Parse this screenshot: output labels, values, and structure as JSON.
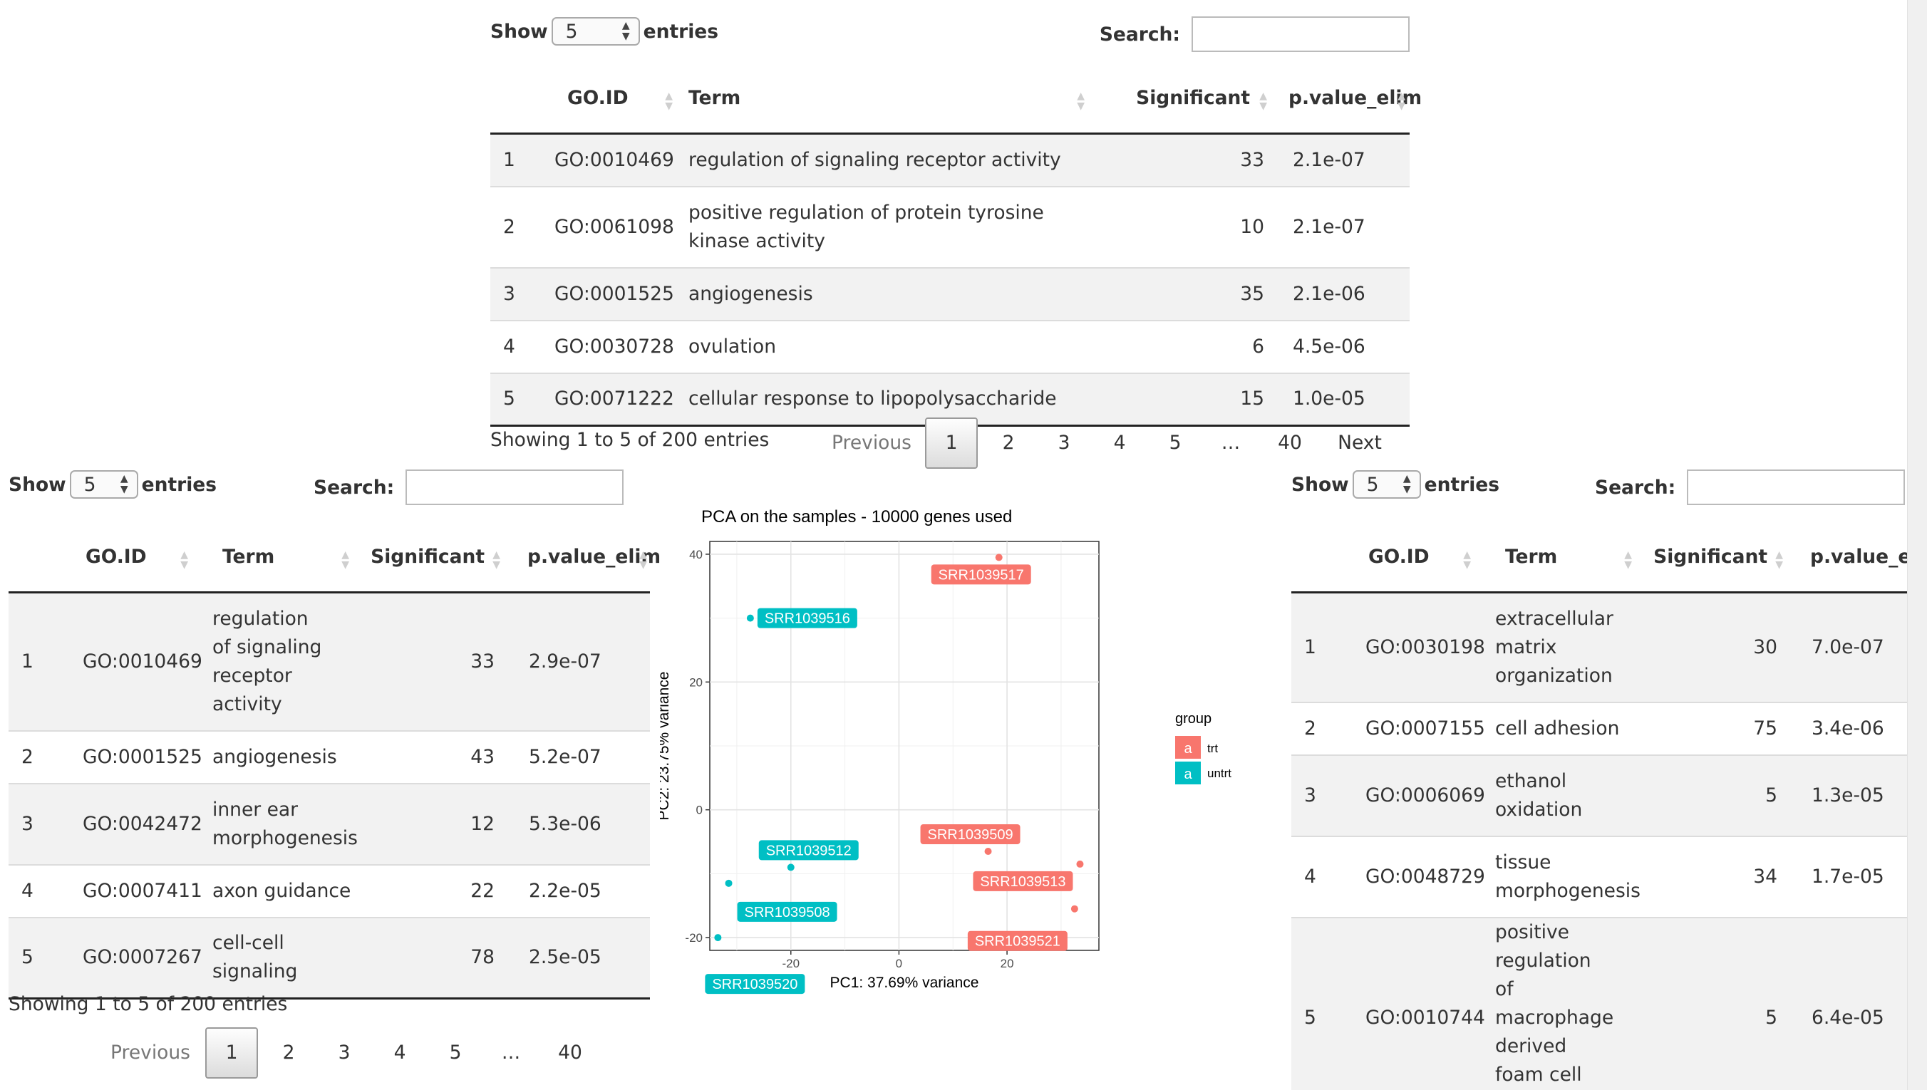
{
  "common": {
    "show_label": "Show",
    "entries_label": "entries",
    "search_label": "Search:",
    "page_length": "5",
    "columns": [
      "GO.ID",
      "Term",
      "Significant",
      "p.value_elim"
    ],
    "info": "Showing 1 to 5 of 200 entries",
    "previous_label": "Previous",
    "next_label": "Next",
    "pages": [
      "1",
      "2",
      "3",
      "4",
      "5",
      "…",
      "40"
    ]
  },
  "tables": [
    {
      "rows": [
        {
          "n": "1",
          "id": "GO:0010469",
          "term": "regulation of signaling receptor activity",
          "sig": "33",
          "p": "2.1e-07"
        },
        {
          "n": "2",
          "id": "GO:0061098",
          "term": "positive regulation of protein tyrosine kinase activity",
          "sig": "10",
          "p": "2.1e-07"
        },
        {
          "n": "3",
          "id": "GO:0001525",
          "term": "angiogenesis",
          "sig": "35",
          "p": "2.1e-06"
        },
        {
          "n": "4",
          "id": "GO:0030728",
          "term": "ovulation",
          "sig": "6",
          "p": "4.5e-06"
        },
        {
          "n": "5",
          "id": "GO:0071222",
          "term": "cellular response to lipopolysaccharide",
          "sig": "15",
          "p": "1.0e-05"
        }
      ]
    },
    {
      "rows": [
        {
          "n": "1",
          "id": "GO:0010469",
          "term": "regulation of signaling receptor activity",
          "sig": "33",
          "p": "2.9e-07"
        },
        {
          "n": "2",
          "id": "GO:0001525",
          "term": "angiogenesis",
          "sig": "43",
          "p": "5.2e-07"
        },
        {
          "n": "3",
          "id": "GO:0042472",
          "term": "inner ear morphogenesis",
          "sig": "12",
          "p": "5.3e-06"
        },
        {
          "n": "4",
          "id": "GO:0007411",
          "term": "axon guidance",
          "sig": "22",
          "p": "2.2e-05"
        },
        {
          "n": "5",
          "id": "GO:0007267",
          "term": "cell-cell signaling",
          "sig": "78",
          "p": "2.5e-05"
        }
      ]
    },
    {
      "rows": [
        {
          "n": "1",
          "id": "GO:0030198",
          "term": "extracellular matrix organization",
          "sig": "30",
          "p": "7.0e-07"
        },
        {
          "n": "2",
          "id": "GO:0007155",
          "term": "cell adhesion",
          "sig": "75",
          "p": "3.4e-06"
        },
        {
          "n": "3",
          "id": "GO:0006069",
          "term": "ethanol oxidation",
          "sig": "5",
          "p": "1.3e-05"
        },
        {
          "n": "4",
          "id": "GO:0048729",
          "term": "tissue morphogenesis",
          "sig": "34",
          "p": "1.7e-05"
        },
        {
          "n": "5",
          "id": "GO:0010744",
          "term": "positive regulation of macrophage derived foam cell differentiation",
          "sig": "5",
          "p": "6.4e-05"
        }
      ]
    }
  ],
  "chart_data": {
    "type": "scatter",
    "title": "PCA on the samples - 10000 genes used",
    "xlabel": "PC1: 37.69% variance",
    "ylabel": "PC2: 23.75% variance",
    "xlim": [
      -35,
      37
    ],
    "ylim": [
      -22,
      42
    ],
    "x_ticks": [
      -20,
      0,
      20
    ],
    "y_ticks": [
      -20,
      0,
      20,
      40
    ],
    "grid": true,
    "legend_title": "group",
    "legend_position": "right",
    "legend_key_glyph": "a",
    "series": [
      {
        "name": "trt",
        "color": "#F8766D",
        "points": [
          {
            "label": "SRR1039517",
            "x": 18.5,
            "y": 39.5
          },
          {
            "label": "SRR1039509",
            "x": 16.5,
            "y": -6.5
          },
          {
            "label": "SRR1039513",
            "x": 33.5,
            "y": -8.5
          },
          {
            "label": "SRR1039521",
            "x": 32.5,
            "y": -15.5
          }
        ]
      },
      {
        "name": "untrt",
        "color": "#00BFC4",
        "points": [
          {
            "label": "SRR1039516",
            "x": -27.5,
            "y": 30
          },
          {
            "label": "SRR1039512",
            "x": -20,
            "y": -9
          },
          {
            "label": "SRR1039508",
            "x": -31.5,
            "y": -11.5
          },
          {
            "label": "SRR1039520",
            "x": -33.5,
            "y": -20
          }
        ]
      }
    ]
  }
}
